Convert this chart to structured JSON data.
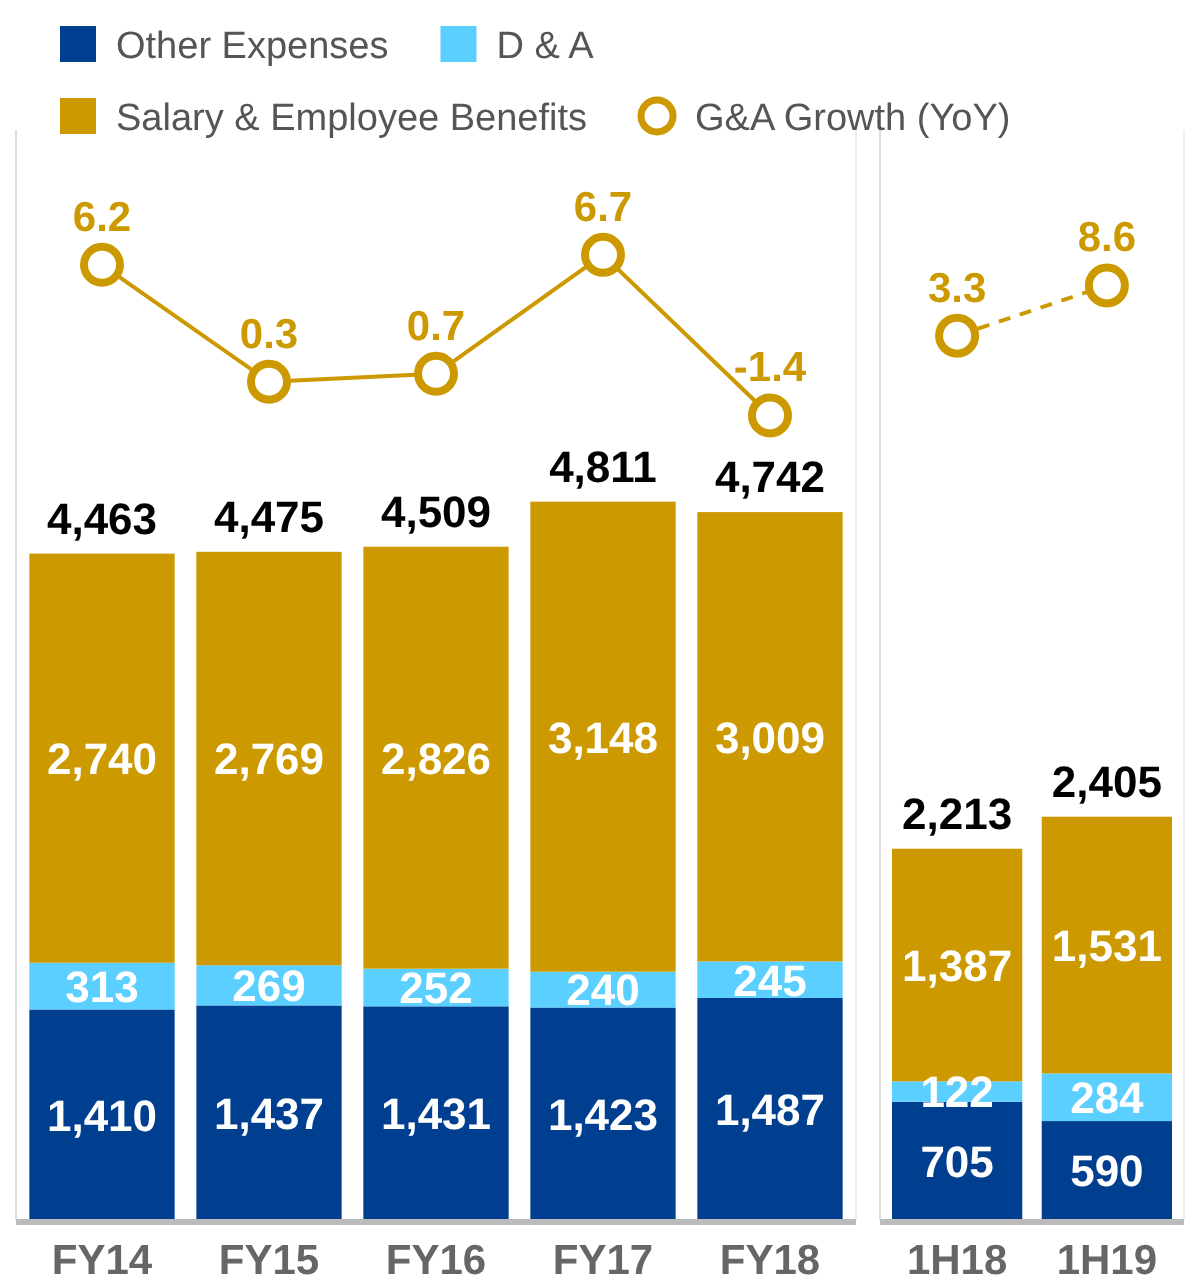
{
  "chart_data": [
    {
      "type": "bar",
      "stacked": true,
      "categories": [
        "FY14",
        "FY15",
        "FY16",
        "FY17",
        "FY18"
      ],
      "tick_labels": "x",
      "ylim": [
        0,
        7300
      ],
      "y2lim": [
        -42,
        13
      ],
      "data_labels": true,
      "legend": "top",
      "totals": [
        "4,463",
        "4,475",
        "4,509",
        "4,811",
        "4,742"
      ],
      "series": [
        {
          "name": "Other Expenses",
          "color": "#003f8f",
          "values": [
            1410,
            1437,
            1431,
            1423,
            1487
          ],
          "value_labels": [
            "1,410",
            "1,437",
            "1,431",
            "1,423",
            "1,487"
          ]
        },
        {
          "name": "D & A",
          "color": "#5bcfff",
          "values": [
            313,
            269,
            252,
            240,
            245
          ],
          "value_labels": [
            "313",
            "269",
            "252",
            "240",
            "245"
          ]
        },
        {
          "name": "Salary & Employee Benefits",
          "color": "#cc9900",
          "values": [
            2740,
            2769,
            2826,
            3148,
            3009
          ],
          "value_labels": [
            "2,740",
            "2,769",
            "2,826",
            "3,148",
            "3,009"
          ]
        },
        {
          "name": "G&A Growth (YoY)",
          "type": "line",
          "axis": "y2",
          "color": "#cc9900",
          "marker": "circle",
          "line_style": "solid",
          "values": [
            6.2,
            0.3,
            0.7,
            6.7,
            -1.4
          ]
        }
      ]
    },
    {
      "type": "bar",
      "stacked": true,
      "categories": [
        "1H18",
        "1H19"
      ],
      "tick_labels": "x",
      "ylim": [
        0,
        6500
      ],
      "y2lim": [
        -90,
        25
      ],
      "data_labels": true,
      "totals": [
        "2,213",
        "2,405"
      ],
      "series": [
        {
          "color": "#003f8f",
          "values": [
            705,
            590
          ],
          "value_labels": [
            "705",
            "590"
          ]
        },
        {
          "color": "#5bcfff",
          "values": [
            122,
            284
          ],
          "value_labels": [
            "122",
            "284"
          ]
        },
        {
          "color": "#cc9900",
          "values": [
            1387,
            1531
          ],
          "value_labels": [
            "1,387",
            "1,531"
          ]
        },
        {
          "type": "line",
          "axis": "y2",
          "color": "#cc9900",
          "marker": "circle",
          "line_style": "dashed",
          "values": [
            3.3,
            8.6
          ]
        }
      ]
    }
  ]
}
